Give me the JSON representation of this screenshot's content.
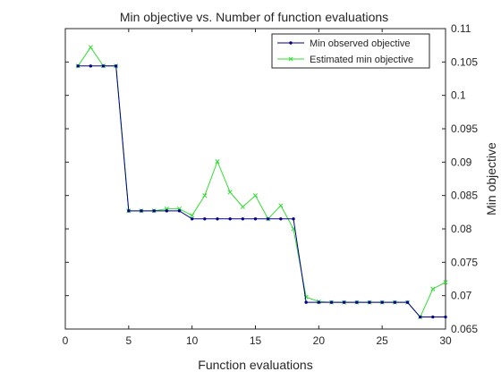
{
  "chart_data": {
    "type": "line",
    "title": "Min objective vs. Number of function evaluations",
    "xlabel": "Function evaluations",
    "ylabel": "Min objective",
    "xlim": [
      0,
      30
    ],
    "ylim": [
      0.065,
      0.11
    ],
    "x_ticks": [
      0,
      5,
      10,
      15,
      20,
      25,
      30
    ],
    "x_tick_labels": [
      "0",
      "5",
      "10",
      "15",
      "20",
      "25",
      "30"
    ],
    "y_ticks": [
      0.065,
      0.07,
      0.075,
      0.08,
      0.085,
      0.09,
      0.095,
      0.1,
      0.105,
      0.11
    ],
    "y_tick_labels": [
      "0.065",
      "0.07",
      "0.075",
      "0.08",
      "0.085",
      "0.09",
      "0.095",
      "0.1",
      "0.105",
      "0.11"
    ],
    "y_axis_location": "right",
    "grid": false,
    "legend_position": "top-right",
    "x": [
      1,
      2,
      3,
      4,
      5,
      6,
      7,
      8,
      9,
      10,
      11,
      12,
      13,
      14,
      15,
      16,
      17,
      18,
      19,
      20,
      21,
      22,
      23,
      24,
      25,
      26,
      27,
      28,
      29,
      30
    ],
    "series": [
      {
        "name": "Min observed objective",
        "color": "#00008b",
        "marker": "dot",
        "values": [
          0.1044,
          0.1044,
          0.1044,
          0.1044,
          0.0827,
          0.0827,
          0.0827,
          0.0827,
          0.0827,
          0.0815,
          0.0815,
          0.0815,
          0.0815,
          0.0815,
          0.0815,
          0.0815,
          0.0815,
          0.0815,
          0.069,
          0.069,
          0.069,
          0.069,
          0.069,
          0.069,
          0.069,
          0.069,
          0.069,
          0.0668,
          0.0668,
          0.0668
        ]
      },
      {
        "name": "Estimated min objective",
        "color": "#33dd33",
        "marker": "x",
        "values": [
          0.1044,
          0.1072,
          0.1044,
          0.1044,
          0.0827,
          0.0827,
          0.0827,
          0.083,
          0.083,
          0.082,
          0.085,
          0.0901,
          0.0855,
          0.0833,
          0.085,
          0.0815,
          0.0835,
          0.08,
          0.0698,
          0.0691,
          0.069,
          0.069,
          0.069,
          0.069,
          0.069,
          0.069,
          0.069,
          0.0668,
          0.071,
          0.072
        ]
      }
    ]
  }
}
